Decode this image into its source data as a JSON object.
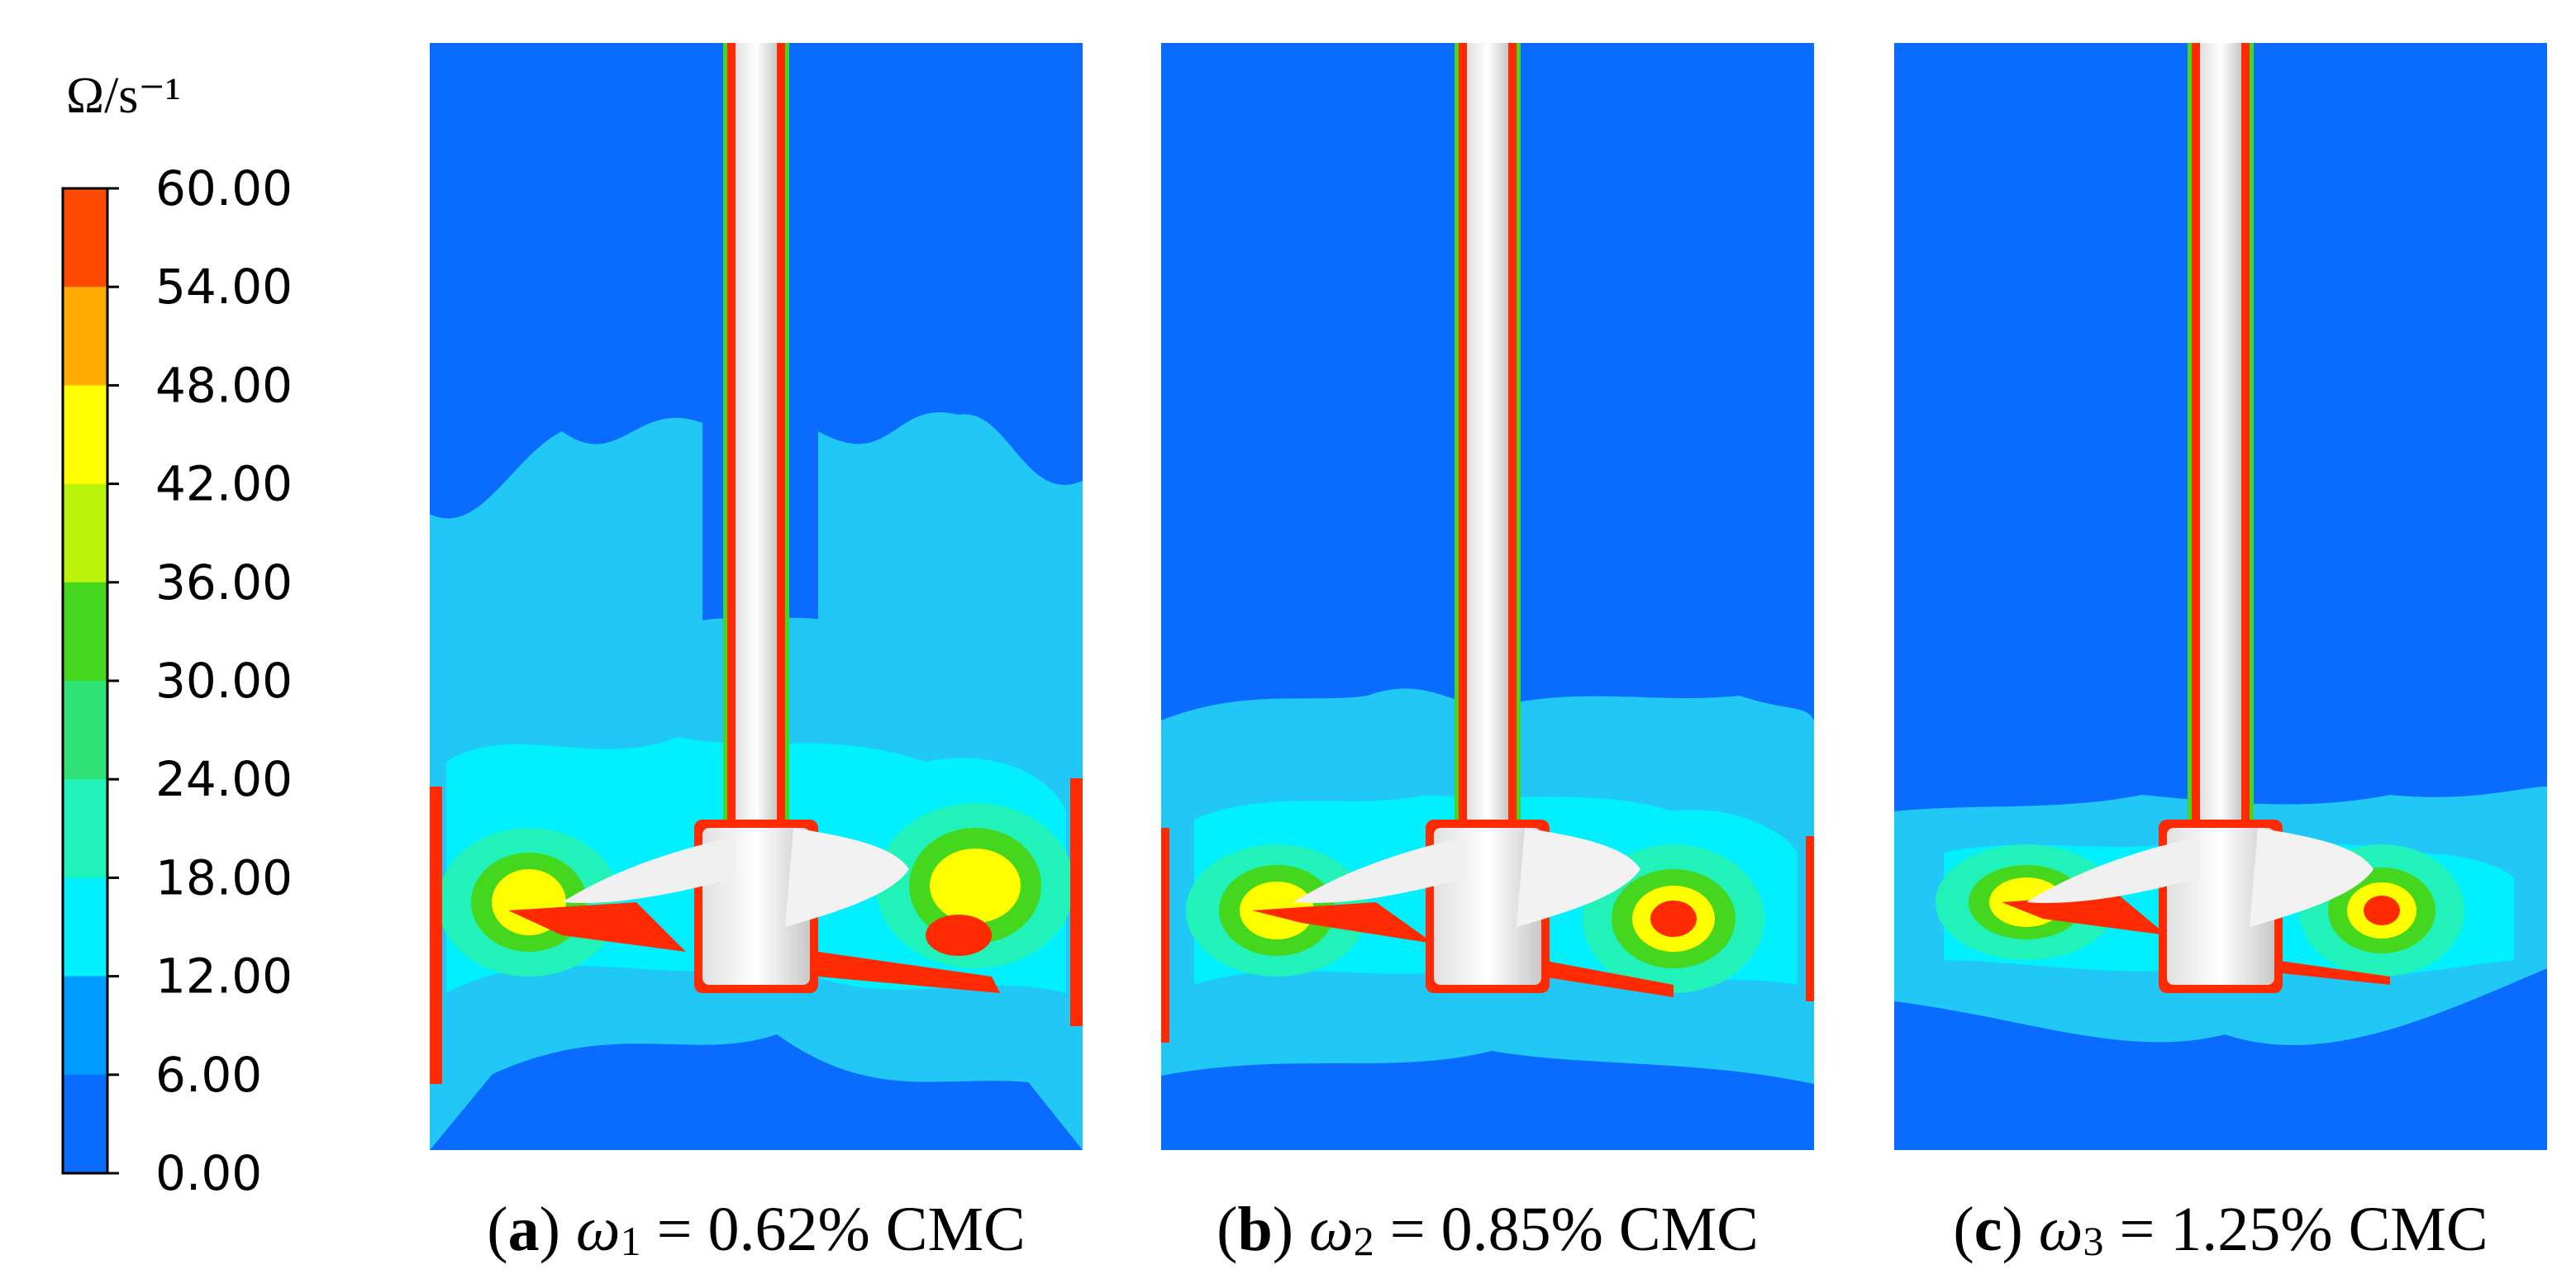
{
  "colorbar": {
    "title": "Ω/s⁻¹",
    "ticks": [
      "60.00",
      "54.00",
      "48.00",
      "42.00",
      "36.00",
      "30.00",
      "24.00",
      "18.00",
      "12.00",
      "6.00",
      "0.00"
    ],
    "band_colors": [
      "#ff4b00",
      "#ffab00",
      "#ffff00",
      "#b9f20a",
      "#45d61e",
      "#2fe072",
      "#21f2b9",
      "#00f0ff",
      "#009cff",
      "#0a6cff"
    ]
  },
  "panels": [
    {
      "letter": "a",
      "symbol": "ω",
      "subscript": "1",
      "value": "= 0.62% CMC"
    },
    {
      "letter": "b",
      "symbol": "ω",
      "subscript": "2",
      "value": "= 0.85% CMC"
    },
    {
      "letter": "c",
      "symbol": "ω",
      "subscript": "3",
      "value": "= 1.25% CMC"
    }
  ]
}
